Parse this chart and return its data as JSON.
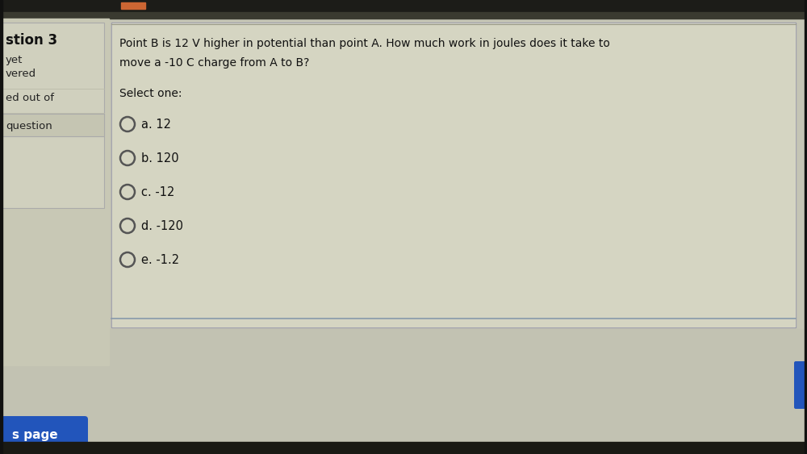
{
  "bg_outer": "#1a1a1a",
  "bg_screen": "#c8c8b8",
  "bg_screen_top": "#606050",
  "left_panel_bg": "#d0d0c0",
  "left_panel_border": "#aaaaaa",
  "left_panel_box_bg": "#c8c8b8",
  "main_panel_bg": "#d8d8c8",
  "main_panel_lighter": "#e0e0d0",
  "main_panel_border": "#9999aa",
  "top_dark_bar": "#2a2a22",
  "top_dark_bar2": "#555548",
  "question_number": "stion 3",
  "left_labels_plain": [
    "yet",
    "vered"
  ],
  "left_label_edout": "ed out of",
  "left_label_question": "question",
  "question_text_line1": "Point B is 12 V higher in potential than point A. How much work in joules does it take to",
  "question_text_line2": "move a -10 C charge from A to B?",
  "select_one_label": "Select one:",
  "options": [
    "a. 12",
    "b. 120",
    "c. -12",
    "d. -120",
    "e. -1.2"
  ],
  "bottom_button_color": "#2255bb",
  "bottom_button_text": "s page",
  "bottom_right_button_color": "#2255bb",
  "text_color": "#222222",
  "text_color_dark": "#111111"
}
